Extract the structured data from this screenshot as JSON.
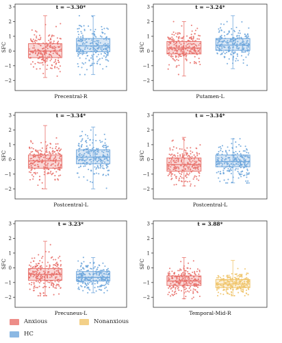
{
  "figure": {
    "y_axis_label": "SFC",
    "y_ticks": [
      3,
      2,
      1,
      0,
      -1,
      -2
    ]
  },
  "colors": {
    "Anxious": "#e8706a",
    "HC": "#6ea6dc",
    "Nonanxious": "#f0c46a"
  },
  "legend": {
    "items": [
      {
        "label": "Anxious",
        "color_key": "Anxious"
      },
      {
        "label": "HC",
        "color_key": "HC"
      },
      {
        "label": "Nonanxious",
        "color_key": "Nonanxious"
      }
    ]
  },
  "chart_data": [
    {
      "type": "box",
      "title": "t = −3.30*",
      "xlabel": "Precentral-R",
      "ylabel": "SFC",
      "ylim": [
        -2.5,
        3
      ],
      "series": [
        {
          "name": "Anxious",
          "color_key": "Anxious",
          "median": 0.0,
          "q1": -0.45,
          "q3": 0.5,
          "whisker_low": -1.8,
          "whisker_high": 2.4
        },
        {
          "name": "HC",
          "color_key": "HC",
          "median": 0.35,
          "q1": -0.05,
          "q3": 0.85,
          "whisker_low": -1.6,
          "whisker_high": 2.4
        }
      ]
    },
    {
      "type": "box",
      "title": "t = −3.24*",
      "xlabel": "Putamen-L",
      "ylabel": "SFC",
      "ylim": [
        -2.5,
        3
      ],
      "series": [
        {
          "name": "Anxious",
          "color_key": "Anxious",
          "median": 0.2,
          "q1": -0.2,
          "q3": 0.65,
          "whisker_low": -1.7,
          "whisker_high": 2.0
        },
        {
          "name": "HC",
          "color_key": "HC",
          "median": 0.4,
          "q1": 0.05,
          "q3": 0.85,
          "whisker_low": -1.2,
          "whisker_high": 2.4
        }
      ]
    },
    {
      "type": "box",
      "title": "t = −3.34*",
      "xlabel": "Postcentral-L",
      "ylabel": "SFC",
      "ylim": [
        -2.5,
        3
      ],
      "series": [
        {
          "name": "Anxious",
          "color_key": "Anxious",
          "median": -0.1,
          "q1": -0.6,
          "q3": 0.3,
          "whisker_low": -2.0,
          "whisker_high": 2.3
        },
        {
          "name": "HC",
          "color_key": "HC",
          "median": 0.15,
          "q1": -0.3,
          "q3": 0.65,
          "whisker_low": -2.0,
          "whisker_high": 2.2
        }
      ]
    },
    {
      "type": "box",
      "title": "t = −3.34*",
      "xlabel": "Postcentral-L",
      "ylabel": "SFC",
      "ylim": [
        -2.5,
        3
      ],
      "series": [
        {
          "name": "Anxious",
          "color_key": "Anxious",
          "median": -0.35,
          "q1": -0.8,
          "q3": 0.1,
          "whisker_low": -1.8,
          "whisker_high": 1.5
        },
        {
          "name": "HC",
          "color_key": "HC",
          "median": -0.15,
          "q1": -0.5,
          "q3": 0.3,
          "whisker_low": -1.6,
          "whisker_high": 1.4
        }
      ]
    },
    {
      "type": "box",
      "title": "t = 3.23*",
      "xlabel": "Precuneus-L",
      "ylabel": "SFC",
      "ylim": [
        -2.5,
        3
      ],
      "series": [
        {
          "name": "Anxious",
          "color_key": "Anxious",
          "median": -0.45,
          "q1": -0.85,
          "q3": -0.05,
          "whisker_low": -1.9,
          "whisker_high": 1.8
        },
        {
          "name": "HC",
          "color_key": "HC",
          "median": -0.65,
          "q1": -0.9,
          "q3": -0.25,
          "whisker_low": -1.7,
          "whisker_high": 0.7
        }
      ]
    },
    {
      "type": "box",
      "title": "t = 3.88*",
      "xlabel": "Temporal-Mid-R",
      "ylabel": "SFC",
      "ylim": [
        -2.5,
        3
      ],
      "series": [
        {
          "name": "Anxious",
          "color_key": "Anxious",
          "median": -0.9,
          "q1": -1.2,
          "q3": -0.55,
          "whisker_low": -2.1,
          "whisker_high": 0.7
        },
        {
          "name": "Nonanxious",
          "color_key": "Nonanxious",
          "median": -1.1,
          "q1": -1.35,
          "q3": -0.8,
          "whisker_low": -1.9,
          "whisker_high": 0.5
        }
      ]
    }
  ]
}
